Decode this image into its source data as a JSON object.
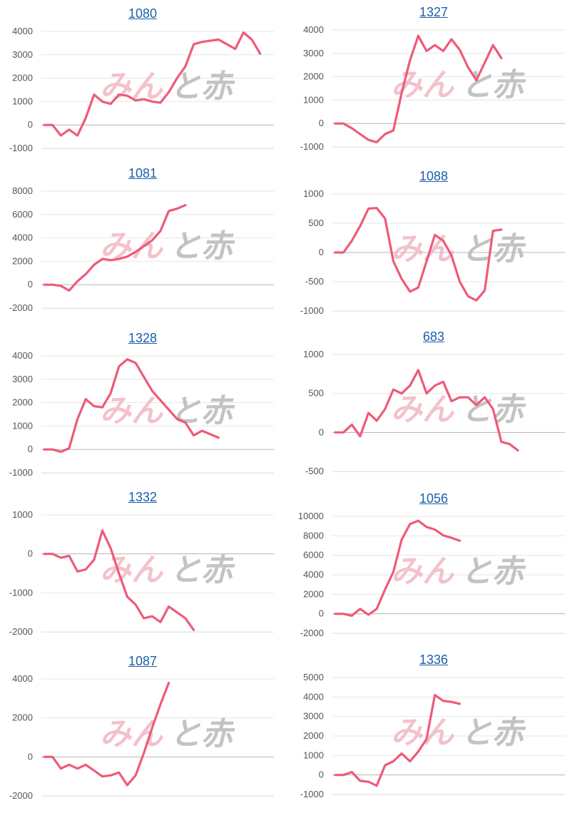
{
  "watermark": {
    "part1": "みん",
    "part2": "と赤",
    "colors": [
      "#f2b8c2",
      "#bdbdbd"
    ]
  },
  "line_color": "#ef5a78",
  "link_color": "#1a5fa8",
  "chart_data": [
    {
      "type": "line",
      "title": "1080",
      "yticks": [
        "4000",
        "3000",
        "2000",
        "1000",
        "0",
        "-1000"
      ],
      "ylim": [
        -1000,
        4000
      ],
      "values": [
        0,
        0,
        -450,
        -200,
        -450,
        300,
        1300,
        1000,
        900,
        1300,
        1250,
        1050,
        1100,
        1000,
        950,
        1400,
        2000,
        2500,
        3450,
        3550,
        3600,
        3650,
        3450,
        3250,
        3950,
        3650,
        3050
      ]
    },
    {
      "type": "line",
      "title": "1327",
      "yticks": [
        "4000",
        "3000",
        "2000",
        "1000",
        "0",
        "-1000"
      ],
      "ylim": [
        -1000,
        4000
      ],
      "values": [
        0,
        0,
        -200,
        -450,
        -700,
        -800,
        -450,
        -300,
        1300,
        2700,
        3750,
        3100,
        3350,
        3100,
        3600,
        3150,
        2400,
        1850,
        2600,
        3350,
        2800
      ]
    },
    {
      "type": "line",
      "title": "1081",
      "yticks": [
        "8000",
        "6000",
        "4000",
        "2000",
        "0",
        "-2000"
      ],
      "ylim": [
        -2000,
        8000
      ],
      "values": [
        0,
        0,
        -100,
        -500,
        300,
        900,
        1700,
        2200,
        2100,
        2200,
        2400,
        2800,
        3300,
        3800,
        4600,
        6300,
        6500,
        6800
      ]
    },
    {
      "type": "line",
      "title": "1088",
      "yticks": [
        "1000",
        "500",
        "0",
        "-500",
        "-1000"
      ],
      "ylim": [
        -1000,
        1000
      ],
      "values": [
        0,
        0,
        200,
        450,
        750,
        760,
        580,
        -150,
        -450,
        -670,
        -600,
        -150,
        300,
        200,
        -50,
        -500,
        -750,
        -820,
        -650,
        370,
        390
      ]
    },
    {
      "type": "line",
      "title": "1328",
      "yticks": [
        "4000",
        "3000",
        "2000",
        "1000",
        "0",
        "-1000"
      ],
      "ylim": [
        -1000,
        4000
      ],
      "values": [
        0,
        0,
        -100,
        50,
        1300,
        2150,
        1850,
        1800,
        2400,
        3550,
        3850,
        3700,
        3100,
        2500,
        2100,
        1700,
        1300,
        1150,
        600,
        800,
        650,
        500
      ]
    },
    {
      "type": "line",
      "title": "683",
      "yticks": [
        "1000",
        "500",
        "0",
        "-500"
      ],
      "ylim": [
        -500,
        1000
      ],
      "values": [
        0,
        0,
        100,
        -50,
        250,
        150,
        300,
        550,
        500,
        600,
        800,
        500,
        600,
        650,
        400,
        450,
        450,
        350,
        450,
        300,
        -120,
        -150,
        -230
      ]
    },
    {
      "type": "line",
      "title": "1332",
      "yticks": [
        "1000",
        "0",
        "-1000",
        "-2000"
      ],
      "ylim": [
        -2000,
        1000
      ],
      "values": [
        0,
        0,
        -100,
        -50,
        -450,
        -400,
        -150,
        600,
        150,
        -500,
        -1100,
        -1300,
        -1650,
        -1600,
        -1750,
        -1350,
        -1500,
        -1650,
        -1950
      ]
    },
    {
      "type": "line",
      "title": "1056",
      "yticks": [
        "10000",
        "8000",
        "6000",
        "4000",
        "2000",
        "0",
        "-2000"
      ],
      "ylim": [
        -2000,
        10000
      ],
      "values": [
        0,
        0,
        -200,
        500,
        -100,
        500,
        2500,
        4300,
        7600,
        9200,
        9550,
        8900,
        8650,
        8050,
        7800,
        7500
      ]
    },
    {
      "type": "line",
      "title": "1087",
      "yticks": [
        "4000",
        "2000",
        "0",
        "-2000"
      ],
      "ylim": [
        -2000,
        4000
      ],
      "values": [
        0,
        0,
        -600,
        -400,
        -600,
        -400,
        -700,
        -1000,
        -950,
        -800,
        -1450,
        -950,
        200,
        1500,
        2700,
        3800
      ]
    },
    {
      "type": "line",
      "title": "1336",
      "yticks": [
        "5000",
        "4000",
        "3000",
        "2000",
        "1000",
        "0",
        "-1000"
      ],
      "ylim": [
        -1000,
        5000
      ],
      "values": [
        0,
        0,
        150,
        -300,
        -350,
        -550,
        500,
        700,
        1100,
        700,
        1200,
        1850,
        4100,
        3800,
        3750,
        3650
      ]
    }
  ]
}
